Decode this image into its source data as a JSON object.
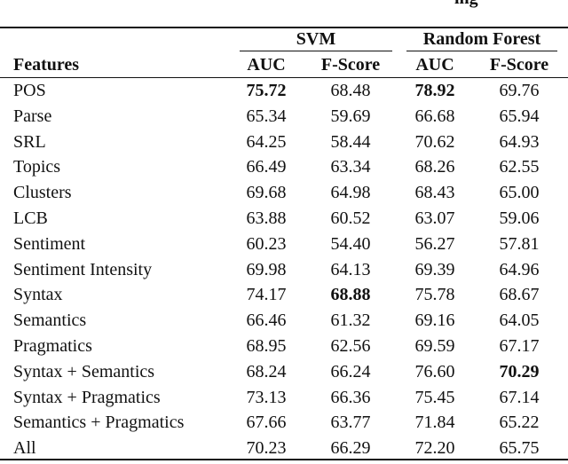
{
  "caption_fragment": "ing",
  "table": {
    "groups": [
      "SVM",
      "Random Forest"
    ],
    "columns": [
      "Features",
      "AUC",
      "F-Score",
      "AUC",
      "F-Score"
    ],
    "rows": [
      [
        "POS",
        {
          "text": "75.72",
          "bold": true
        },
        "68.48",
        {
          "text": "78.92",
          "bold": true
        },
        "69.76"
      ],
      [
        "Parse",
        "65.34",
        "59.69",
        "66.68",
        "65.94"
      ],
      [
        "SRL",
        "64.25",
        "58.44",
        "70.62",
        "64.93"
      ],
      [
        "Topics",
        "66.49",
        "63.34",
        "68.26",
        "62.55"
      ],
      [
        "Clusters",
        "69.68",
        "64.98",
        "68.43",
        "65.00"
      ],
      [
        "LCB",
        "63.88",
        "60.52",
        "63.07",
        "59.06"
      ],
      [
        "Sentiment",
        "60.23",
        "54.40",
        "56.27",
        "57.81"
      ],
      [
        "Sentiment Intensity",
        "69.98",
        "64.13",
        "69.39",
        "64.96"
      ],
      [
        "Syntax",
        "74.17",
        {
          "text": "68.88",
          "bold": true
        },
        "75.78",
        "68.67"
      ],
      [
        "Semantics",
        "66.46",
        "61.32",
        "69.16",
        "64.05"
      ],
      [
        "Pragmatics",
        "68.95",
        "62.56",
        "69.59",
        "67.17"
      ],
      [
        "Syntax + Semantics",
        "68.24",
        "66.24",
        "76.60",
        {
          "text": "70.29",
          "bold": true
        }
      ],
      [
        "Syntax + Pragmatics",
        "73.13",
        "66.36",
        "75.45",
        "67.14"
      ],
      [
        "Semantics + Pragmatics",
        "67.66",
        "63.77",
        "71.84",
        "65.22"
      ],
      [
        "All",
        "70.23",
        "66.29",
        "72.20",
        "65.75"
      ]
    ]
  }
}
